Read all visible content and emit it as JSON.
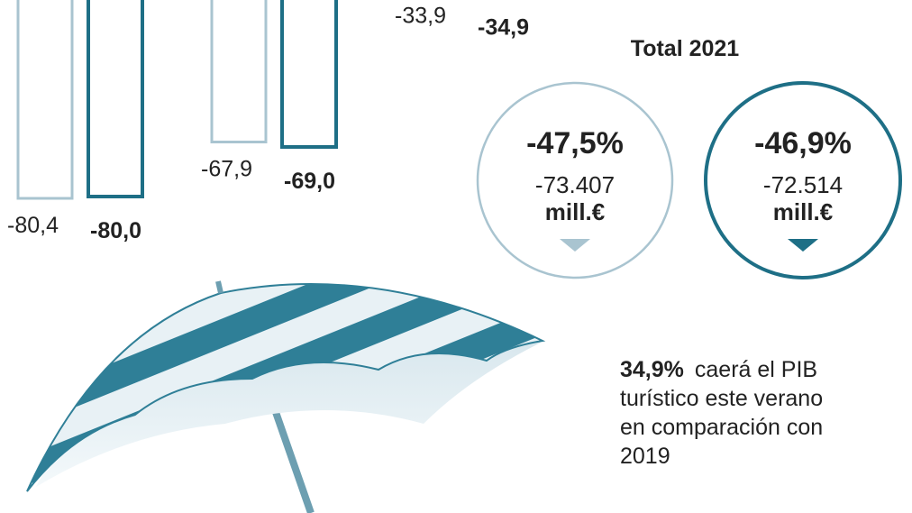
{
  "chart_data": {
    "type": "bar",
    "categories": [
      null,
      null,
      null
    ],
    "series": [
      {
        "color": "#a9c4d0",
        "values": [
          -80.4,
          -67.9,
          -33.9
        ],
        "value_labels": [
          "-80,4",
          "-67,9",
          "-33,9"
        ]
      },
      {
        "color": "#1e6f86",
        "values": [
          -80.0,
          -69.0,
          -34.9
        ],
        "value_labels": [
          "-80,0",
          "-69,0",
          "-34,9"
        ]
      }
    ]
  },
  "totals": {
    "title": "Total 2021",
    "items": [
      {
        "percent": "-47,5%",
        "amount": "-73.407",
        "unit": "mill.€",
        "color": "#a9c4d0"
      },
      {
        "percent": "-46,9%",
        "amount": "-72.514",
        "unit": "mill.€",
        "color": "#1e6f86"
      }
    ]
  },
  "note": {
    "highlight": "34,9%",
    "lines": [
      "caerá el PIB",
      "turístico este verano",
      "en comparación con",
      "2019"
    ]
  }
}
